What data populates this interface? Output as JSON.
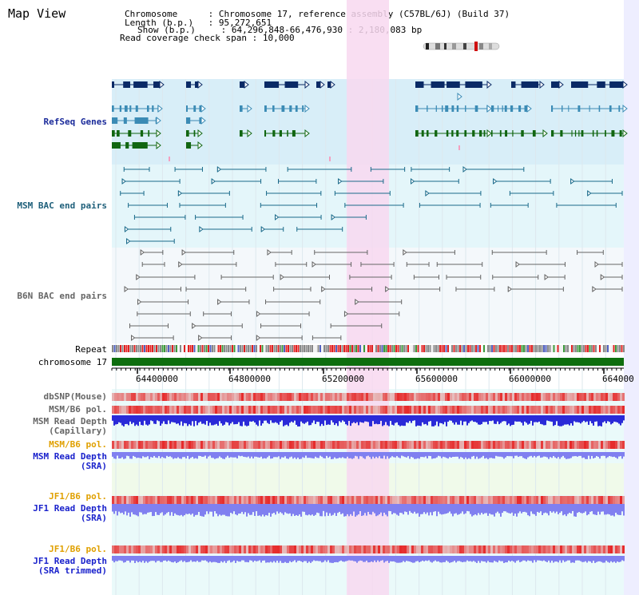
{
  "header": {
    "title": "Map View",
    "chromosome_key": "Chromosome",
    "chromosome_val": "Chromosome 17, reference assembly (C57BL/6J) (Build 37)",
    "length_key": "Length (b.p.)",
    "length_val": "95,272,651",
    "show_key": "Show (b.p.)",
    "show_val": "64,296,848-66,476,930 : 2,180,083 bp",
    "coverage_key": "Read coverage check span",
    "coverage_val": "10,000"
  },
  "tracks": {
    "refseq": "RefSeq Genes",
    "msm_bac": "MSM BAC end pairs",
    "b6n_bac": "B6N BAC end pairs",
    "repeat": "Repeat",
    "chromosome": "chromosome 17",
    "dbsnp": "dbSNP(Mouse)",
    "msm_b6_pol": "MSM/B6 pol.",
    "msm_depth_cap_1": "MSM Read Depth",
    "msm_depth_cap_2": "(Capillary)",
    "msm_b6_pol_sra": "MSM/B6 pol.",
    "msm_depth_sra_1": "MSM Read Depth",
    "msm_depth_sra_2": "(SRA)",
    "jf1_b6_pol": "JF1/B6 pol.",
    "jf1_depth_1": "JF1 Read Depth",
    "jf1_depth_2": "(SRA)",
    "jf1_b6_pol_2": "JF1/B6 pol.",
    "jf1_depth_trim_1": "JF1 Read Depth",
    "jf1_depth_trim_2": "(SRA trimmed)"
  },
  "axis": {
    "ticks": [
      "64400000",
      "64800000",
      "65200000",
      "65600000",
      "66000000",
      "664000"
    ]
  },
  "colors": {
    "refseq_bg": "#d8eef8",
    "msm_bg": "#e4f6fa",
    "b6n_bg": "#f4f8fb",
    "highlight": "#f8d8f0",
    "gene_navy": "#0a2a66",
    "gene_teal": "#3b8bb5",
    "gene_green": "#116611",
    "msm_pair": "#1a6a8a",
    "b6n_pair": "#666666",
    "chromosome_bar": "#0e6e0e",
    "snp_red": "#e83030",
    "depth_blue": "#2a2ad8",
    "depth_light": "#8080f0"
  }
}
